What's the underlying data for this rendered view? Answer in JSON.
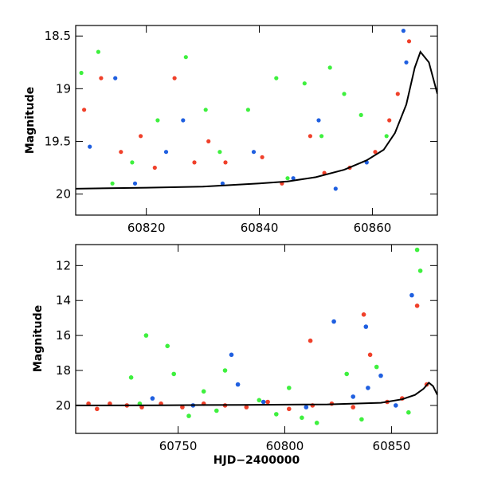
{
  "colors": {
    "green": "#3ef03e",
    "blue": "#1f5fe0",
    "red": "#f0402a",
    "model": "#000000"
  },
  "chart_data": [
    {
      "type": "scatter",
      "title": "",
      "xlabel": "",
      "ylabel": "Magnitude",
      "xlim": [
        60807.5,
        60871.5
      ],
      "ylim": [
        20.2,
        18.4
      ],
      "y_inverted": true,
      "x_ticks": [
        60820,
        60840,
        60860
      ],
      "y_ticks": [
        18.5,
        19,
        19.5,
        20
      ],
      "x_tick_labels": [
        "60820",
        "60840",
        "60860"
      ],
      "y_tick_labels": [
        "18.5",
        "19",
        "19.5",
        "20"
      ],
      "series": [
        {
          "color": "green",
          "x": [
            60808.5,
            60811.5,
            60814,
            60817.5,
            60822,
            60827,
            60830.5,
            60833,
            60838,
            60843,
            60845,
            60848,
            60851,
            60852.5,
            60855,
            60858,
            60862.5
          ],
          "y": [
            18.85,
            18.65,
            19.9,
            19.7,
            19.3,
            18.7,
            19.2,
            19.6,
            19.2,
            18.9,
            19.85,
            18.95,
            19.45,
            18.8,
            19.05,
            19.25,
            19.45
          ]
        },
        {
          "color": "blue",
          "x": [
            60810,
            60814.5,
            60818,
            60823.5,
            60826.5,
            60833.5,
            60839,
            60846,
            60850.5,
            60853.5,
            60859,
            60865.5,
            60866
          ],
          "y": [
            19.55,
            18.9,
            19.9,
            19.6,
            19.3,
            19.9,
            19.6,
            19.85,
            19.3,
            19.95,
            19.7,
            18.45,
            18.75
          ]
        },
        {
          "color": "red",
          "x": [
            60809,
            60812,
            60815.5,
            60819,
            60821.5,
            60825,
            60828.5,
            60831,
            60834,
            60840.5,
            60844,
            60849,
            60851.5,
            60856,
            60860.5,
            60863,
            60864.5,
            60866.5
          ],
          "y": [
            19.2,
            18.9,
            19.6,
            19.45,
            19.75,
            18.9,
            19.7,
            19.5,
            19.7,
            19.65,
            19.9,
            19.45,
            19.8,
            19.75,
            19.6,
            19.3,
            19.05,
            18.55
          ]
        }
      ],
      "model_curve": {
        "x": [
          60807.5,
          60820,
          60830,
          60840,
          60845,
          60850,
          60855,
          60859,
          60862,
          60864,
          60866,
          60867.5,
          60868.5,
          60870,
          60871.5
        ],
        "y": [
          19.95,
          19.94,
          19.93,
          19.9,
          19.88,
          19.84,
          19.77,
          19.68,
          19.58,
          19.42,
          19.15,
          18.8,
          18.65,
          18.75,
          19.05
        ]
      }
    },
    {
      "type": "scatter",
      "title": "",
      "xlabel": "HJD−2400000",
      "ylabel": "Magnitude",
      "xlim": [
        60702,
        60871.5
      ],
      "ylim": [
        21.6,
        10.8
      ],
      "y_inverted": true,
      "x_ticks": [
        60750,
        60800,
        60850
      ],
      "y_ticks": [
        12,
        14,
        16,
        18,
        20
      ],
      "x_tick_labels": [
        "60750",
        "60800",
        "60850"
      ],
      "y_tick_labels": [
        "12",
        "14",
        "16",
        "18",
        "20"
      ],
      "series": [
        {
          "color": "green",
          "x": [
            60728,
            60732,
            60735,
            60745,
            60748,
            60755,
            60762,
            60768,
            60772,
            60788,
            60796,
            60802,
            60808,
            60815,
            60829,
            60836,
            60843,
            60858,
            60862,
            60863.5
          ],
          "y": [
            18.4,
            19.9,
            16.0,
            16.6,
            18.2,
            20.6,
            19.2,
            20.3,
            18.0,
            19.7,
            20.5,
            19.0,
            20.7,
            21.0,
            18.2,
            20.8,
            17.8,
            20.4,
            11.1,
            12.3
          ]
        },
        {
          "color": "blue",
          "x": [
            60738,
            60757,
            60775,
            60778,
            60790,
            60810,
            60823,
            60832,
            60838,
            60839,
            60845,
            60852,
            60859.5
          ],
          "y": [
            19.6,
            20.0,
            17.1,
            18.8,
            19.8,
            20.1,
            15.2,
            19.5,
            15.5,
            19.0,
            18.3,
            20.0,
            13.7
          ]
        },
        {
          "color": "red",
          "x": [
            60708,
            60712,
            60718,
            60726,
            60733,
            60742,
            60752,
            60762,
            60772,
            60782,
            60792,
            60802,
            60812,
            60813,
            60822,
            60832,
            60837,
            60840,
            60848,
            60855,
            60862,
            60866.5
          ],
          "y": [
            19.9,
            20.2,
            19.9,
            20.0,
            20.1,
            19.9,
            20.1,
            19.9,
            20.0,
            20.1,
            19.8,
            20.2,
            16.3,
            20.0,
            19.9,
            20.1,
            14.8,
            17.1,
            19.8,
            19.6,
            14.3,
            18.8
          ]
        }
      ],
      "model_curve": {
        "x": [
          60702,
          60740,
          60780,
          60820,
          60845,
          60855,
          60861,
          60865,
          60867.5,
          60869.5,
          60871.5
        ],
        "y": [
          20.0,
          19.99,
          19.97,
          19.94,
          19.85,
          19.65,
          19.4,
          19.05,
          18.7,
          18.9,
          19.4
        ]
      }
    }
  ]
}
